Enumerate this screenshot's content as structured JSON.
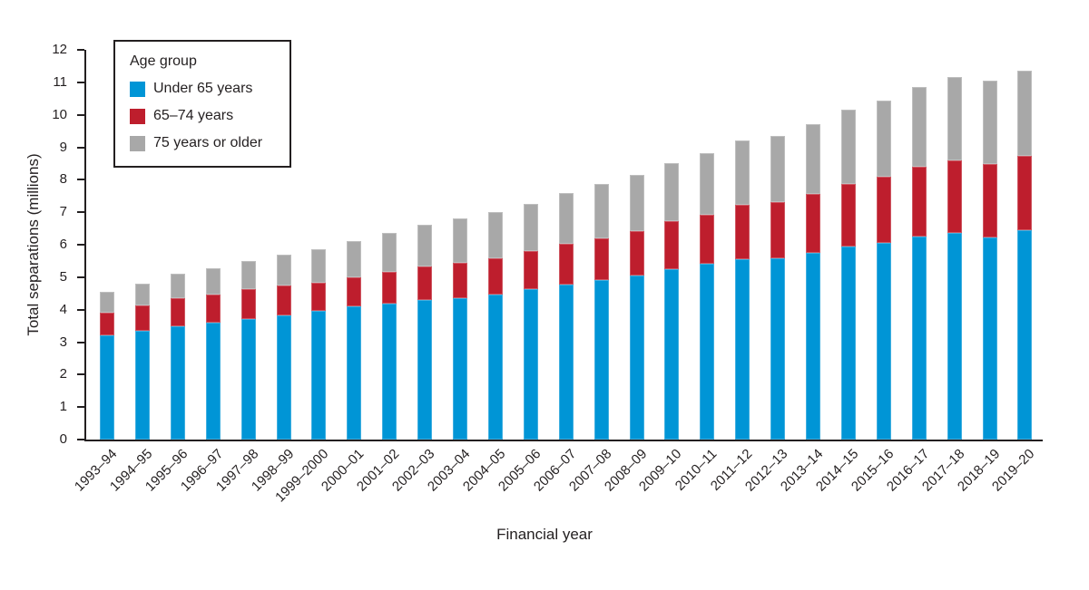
{
  "chart_data": {
    "type": "bar",
    "stacked": true,
    "title": "",
    "xlabel": "Financial year",
    "ylabel": "Total separations (millions)",
    "ylim": [
      0,
      12
    ],
    "ytick_interval": 1,
    "grid": false,
    "legend_title": "Age group",
    "legend_position": "upper left inside",
    "categories": [
      "1993–94",
      "1994–95",
      "1995–96",
      "1996–97",
      "1997–98",
      "1998–99",
      "1999–2000",
      "2000–01",
      "2001–02",
      "2002–03",
      "2003–04",
      "2004–05",
      "2005–06",
      "2006–07",
      "2007–08",
      "2008–09",
      "2009–10",
      "2010–11",
      "2011–12",
      "2012–13",
      "2013–14",
      "2014–15",
      "2015–16",
      "2016–17",
      "2017–18",
      "2018–19",
      "2019–20"
    ],
    "series": [
      {
        "name": "Under 65 years",
        "color": "#0095d6",
        "values": [
          3.2,
          3.35,
          3.5,
          3.6,
          3.72,
          3.82,
          3.95,
          4.1,
          4.2,
          4.3,
          4.36,
          4.46,
          4.62,
          4.77,
          4.9,
          5.06,
          5.24,
          5.4,
          5.55,
          5.58,
          5.74,
          5.94,
          6.05,
          6.25,
          6.35,
          6.23,
          6.44
        ]
      },
      {
        "name": "65–74 years",
        "color": "#be1e2d",
        "values": [
          0.7,
          0.78,
          0.85,
          0.87,
          0.91,
          0.92,
          0.87,
          0.9,
          0.96,
          1.03,
          1.08,
          1.12,
          1.18,
          1.25,
          1.3,
          1.36,
          1.49,
          1.53,
          1.68,
          1.72,
          1.81,
          1.92,
          2.05,
          2.15,
          2.25,
          2.25,
          2.3
        ]
      },
      {
        "name": "75 years or older",
        "color": "#a8a8a8",
        "values": [
          0.65,
          0.67,
          0.75,
          0.8,
          0.87,
          0.94,
          1.03,
          1.1,
          1.19,
          1.29,
          1.36,
          1.42,
          1.47,
          1.56,
          1.68,
          1.73,
          1.77,
          1.89,
          1.97,
          2.05,
          2.15,
          2.29,
          2.35,
          2.45,
          2.55,
          2.57,
          2.61
        ]
      }
    ],
    "axis_color": "#231f20",
    "text_color": "#231f20",
    "background_color": "#ffffff"
  }
}
